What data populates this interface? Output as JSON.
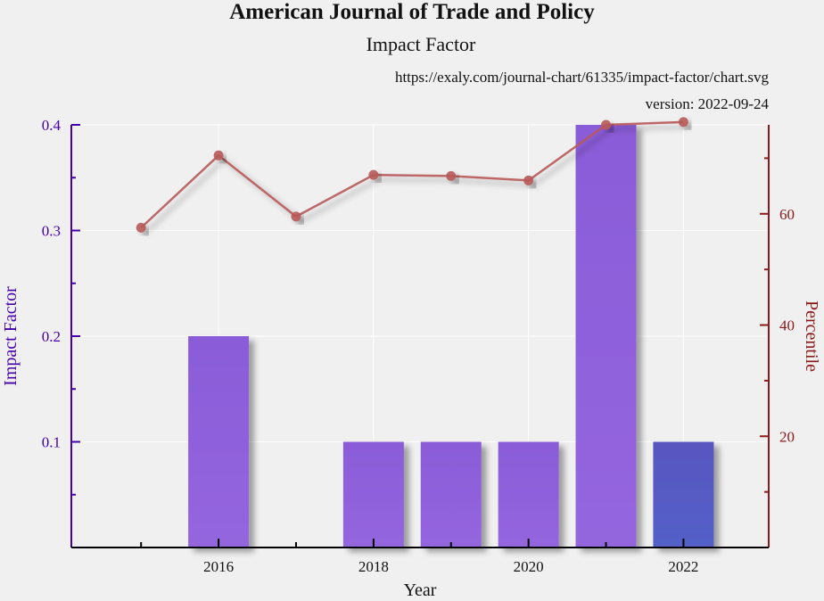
{
  "header": {
    "title": "American Journal of Trade and Policy",
    "subtitle": "Impact Factor",
    "url": "https://exaly.com/journal-chart/61335/impact-factor/chart.svg",
    "version": "version: 2022-09-24"
  },
  "chart_data": {
    "type": "bar",
    "xlabel": "Year",
    "ylabel": "Impact Factor",
    "y2label": "Percentile",
    "x_ticks": [
      "2016",
      "2018",
      "2020",
      "2022"
    ],
    "y_ticks": [
      "0.1",
      "0.2",
      "0.3",
      "0.4"
    ],
    "y2_ticks": [
      "20",
      "40",
      "60"
    ],
    "xlim": [
      2014.1,
      2023.1
    ],
    "ylim": [
      0,
      0.4
    ],
    "y2lim": [
      0,
      76
    ],
    "grid": true,
    "series": [
      {
        "name": "Impact Factor",
        "type": "bar",
        "axis": "left",
        "x": [
          2016,
          2018,
          2019,
          2020,
          2021,
          2022
        ],
        "values": [
          0.2,
          0.1,
          0.1,
          0.1,
          0.4,
          0.1
        ]
      },
      {
        "name": "Percentile",
        "type": "line",
        "axis": "right",
        "x": [
          2015,
          2016,
          2017,
          2018,
          2019,
          2020,
          2021,
          2022
        ],
        "values": [
          57.5,
          70.5,
          59.5,
          67,
          66.8,
          66,
          76,
          76.5
        ]
      }
    ],
    "colors": {
      "bar": "#8058cc",
      "bar_last": "#5758c4",
      "line": "#b85a5a",
      "left_axis": "#4400aa",
      "right_axis": "#8b1a1a"
    }
  }
}
